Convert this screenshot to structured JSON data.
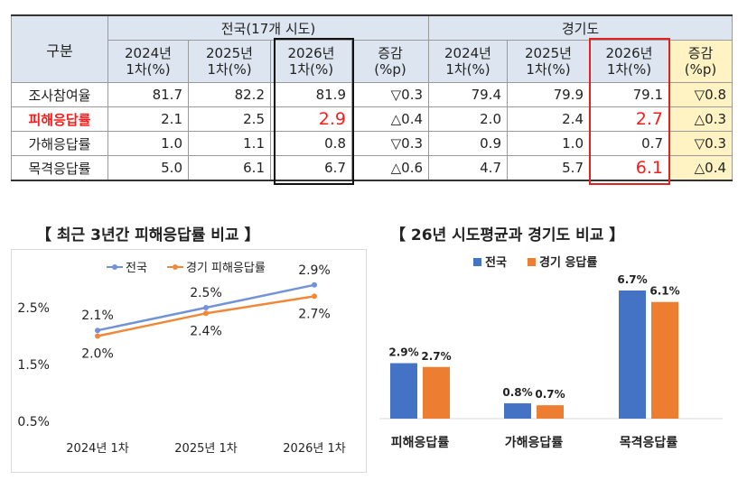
{
  "table": {
    "corner_label": "구분",
    "group_national": "전국(17개 시도)",
    "group_gyeonggi": "경기도",
    "subheaders": [
      {
        "l1": "2024년",
        "l2": "1차(%)"
      },
      {
        "l1": "2025년",
        "l2": "1차(%)"
      },
      {
        "l1": "2026년",
        "l2": "1차(%)"
      },
      {
        "l1": "증감",
        "l2": "(%p)"
      },
      {
        "l1": "2024년",
        "l2": "1차(%)"
      },
      {
        "l1": "2025년",
        "l2": "1차(%)"
      },
      {
        "l1": "2026년",
        "l2": "1차(%)"
      },
      {
        "l1": "증감",
        "l2": "(%p)"
      }
    ],
    "rows": [
      {
        "label": "조사참여율",
        "cells": [
          "81.7",
          "82.2",
          "81.9",
          "▽0.3",
          "79.4",
          "79.9",
          "79.1",
          "▽0.8"
        ]
      },
      {
        "label": "피해응답률",
        "cells": [
          "2.1",
          "2.5",
          "2.9",
          "△0.4",
          "2.0",
          "2.4",
          "2.7",
          "△0.3"
        ]
      },
      {
        "label": "가해응답률",
        "cells": [
          "1.0",
          "1.1",
          "0.8",
          "▽0.3",
          "0.9",
          "1.0",
          "0.7",
          "▽0.3"
        ]
      },
      {
        "label": "목격응답률",
        "cells": [
          "5.0",
          "6.1",
          "6.7",
          "△0.6",
          "4.7",
          "5.7",
          "6.1",
          "△0.4"
        ]
      }
    ]
  },
  "colors": {
    "national": "#7393d8",
    "gyeonggi": "#f0883a",
    "bar_national": "#4472c4",
    "bar_gyeonggi": "#ed7d31",
    "highlight": "#ff1a1a"
  },
  "chart_data": [
    {
      "type": "line",
      "title": "【 최근 3년간 피해응답률 비교 】",
      "categories": [
        "2024년 1차",
        "2025년 1차",
        "2026년 1차"
      ],
      "series": [
        {
          "name": "전국",
          "values": [
            2.1,
            2.5,
            2.9
          ],
          "labels": [
            "2.1%",
            "2.5%",
            "2.9%"
          ]
        },
        {
          "name": "경기 피해응답률",
          "values": [
            2.0,
            2.4,
            2.7
          ],
          "labels": [
            "2.0%",
            "2.4%",
            "2.7%"
          ]
        }
      ],
      "yticks": [
        "2.5%",
        "1.5%",
        "0.5%"
      ],
      "ylim": [
        0.5,
        2.5
      ],
      "grid": false,
      "legend": "top"
    },
    {
      "type": "bar",
      "title": "【 26년 시도평균과 경기도 비교 】",
      "categories": [
        "피해응답률",
        "가해응답률",
        "목격응답률"
      ],
      "series": [
        {
          "name": "전국",
          "values": [
            2.9,
            0.8,
            6.7
          ],
          "labels": [
            "2.9%",
            "0.8%",
            "6.7%"
          ]
        },
        {
          "name": "경기 응답률",
          "values": [
            2.7,
            0.7,
            6.1
          ],
          "labels": [
            "2.7%",
            "0.7%",
            "6.1%"
          ]
        }
      ],
      "grid": false,
      "legend": "top"
    }
  ]
}
